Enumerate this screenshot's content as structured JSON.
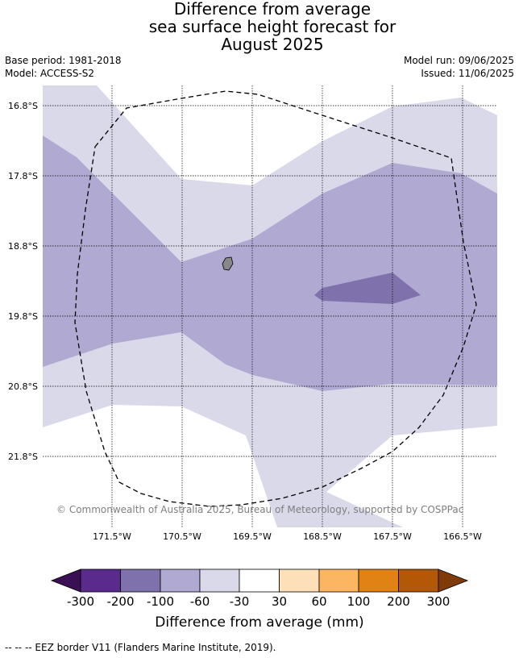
{
  "title": {
    "line1": "Difference from average",
    "line2": "sea surface height forecast for",
    "line3": "August 2025"
  },
  "meta": {
    "base_period": "Base period: 1981-2018",
    "model": "Model: ACCESS-S2",
    "model_run": "Model run: 09/06/2025",
    "issued": "Issued: 11/06/2025"
  },
  "axes": {
    "lat_ticks": [
      "16.8°S",
      "17.8°S",
      "18.8°S",
      "19.8°S",
      "20.8°S",
      "21.8°S"
    ],
    "lon_ticks": [
      "171.5°W",
      "170.5°W",
      "169.5°W",
      "168.5°W",
      "167.5°W",
      "166.5°W"
    ]
  },
  "copyright": "© Commonwealth of Australia 2025, Bureau of Meteorology, supported by COSPPac",
  "colorbar": {
    "label": "Difference from average (mm)",
    "tick_labels": [
      "-300",
      "-200",
      "-100",
      "-60",
      "-30",
      "30",
      "60",
      "100",
      "200",
      "300"
    ],
    "colors": {
      "below_-300": "#3b0f54",
      "-300_-200": "#5a2a8c",
      "-200_-100": "#7f72ac",
      "-100_-60": "#b0aad2",
      "-60_-30": "#d9d9ea",
      "-30_30": "#ffffff",
      "30_60": "#fde0b8",
      "60_100": "#fcb662",
      "100_200": "#e08214",
      "200_300": "#b35806",
      "above_300": "#7f3b08"
    }
  },
  "legend_footer": "-- -- -- EEZ border V11 (Flanders Marine Institute, 2019).",
  "colors": {
    "land": "#888888",
    "eez_border": "#000000",
    "grid": "#000000"
  }
}
